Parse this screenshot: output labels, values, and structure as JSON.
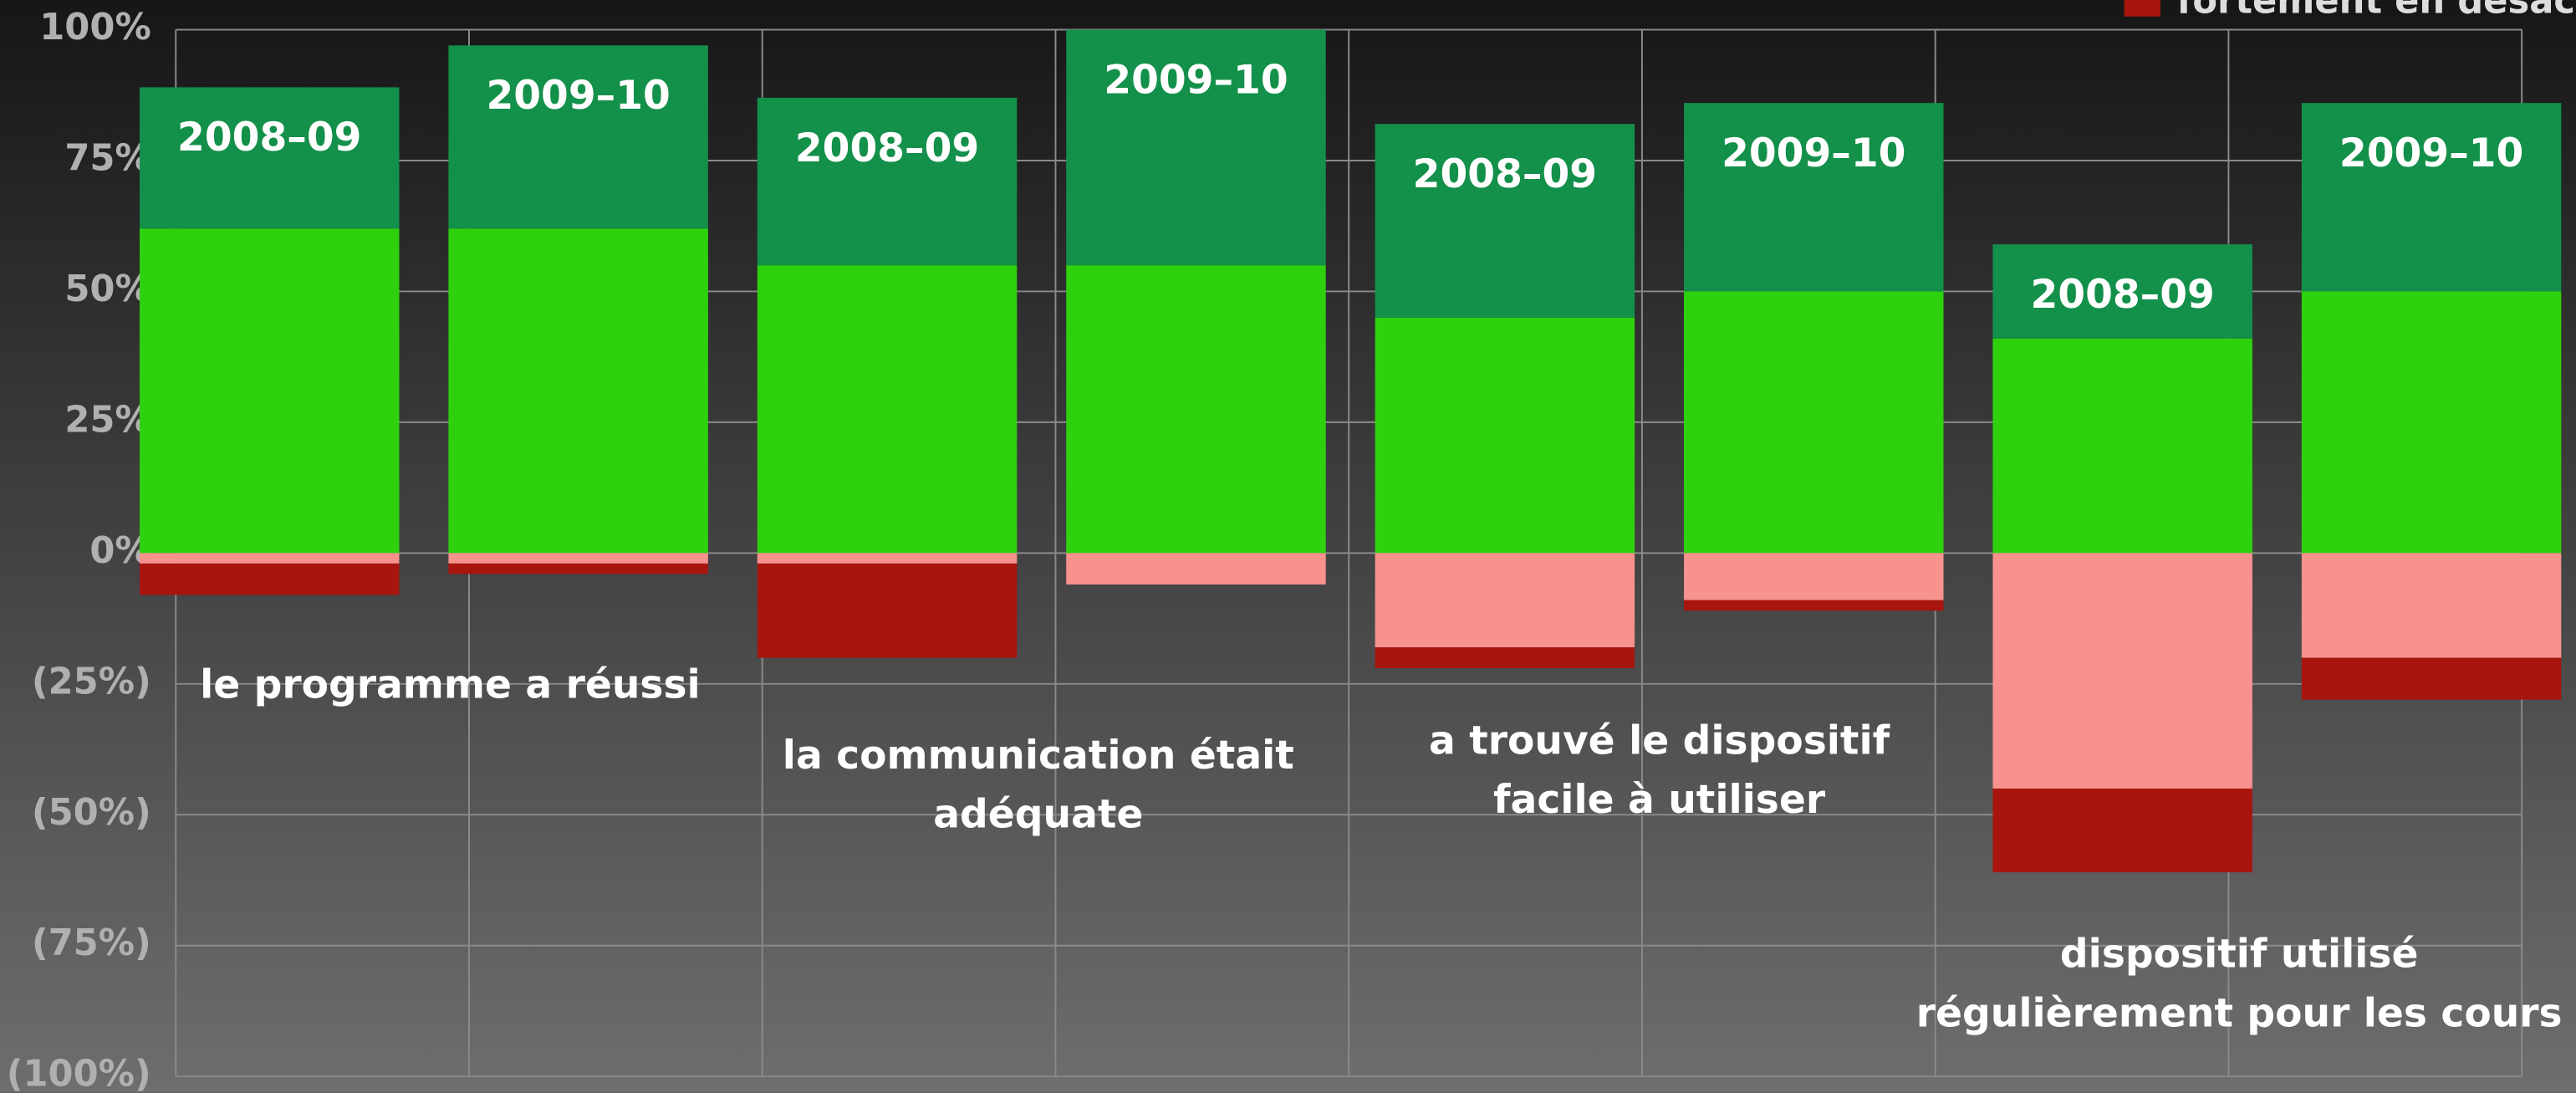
{
  "chart_data": {
    "type": "bar",
    "stacked": true,
    "categories": [
      "2008–09",
      "2009–10",
      "2008–09",
      "2009–10",
      "2008–09",
      "2009–10",
      "2008–09",
      "2009–10"
    ],
    "groups": [
      [
        "le programme a réussi"
      ],
      [
        "la communication était",
        "adéquate"
      ],
      [
        "a trouvé le dispositif",
        "facile à utiliser"
      ],
      [
        "dispositif utilisé",
        "régulièrement pour les cours"
      ]
    ],
    "series": [
      {
        "color": "#2ed10e",
        "values": [
          62,
          62,
          55,
          55,
          45,
          50,
          41,
          50
        ]
      },
      {
        "color": "#13904a",
        "values": [
          27,
          35,
          32,
          45,
          37,
          36,
          18,
          36
        ]
      },
      {
        "color": "#f7928e",
        "values": [
          -2,
          -2,
          -2,
          -6,
          -18,
          -9,
          -45,
          -20
        ]
      },
      {
        "name": "fortement en désaccord",
        "color": "#a8140e",
        "values": [
          -6,
          -2,
          -18,
          0,
          -4,
          -2,
          -16,
          -8
        ]
      }
    ],
    "ylim": [
      -100,
      100
    ],
    "yticks": [
      {
        "value": 100,
        "label": "100%"
      },
      {
        "value": 75,
        "label": "75%"
      },
      {
        "value": 50,
        "label": "50%"
      },
      {
        "value": 25,
        "label": "25%"
      },
      {
        "value": 0,
        "label": "0%"
      },
      {
        "value": -25,
        "label": "(25%)"
      },
      {
        "value": -50,
        "label": "(50%)"
      },
      {
        "value": -75,
        "label": "(75%)"
      },
      {
        "value": -100,
        "label": "(100%)"
      }
    ],
    "grid": true
  }
}
